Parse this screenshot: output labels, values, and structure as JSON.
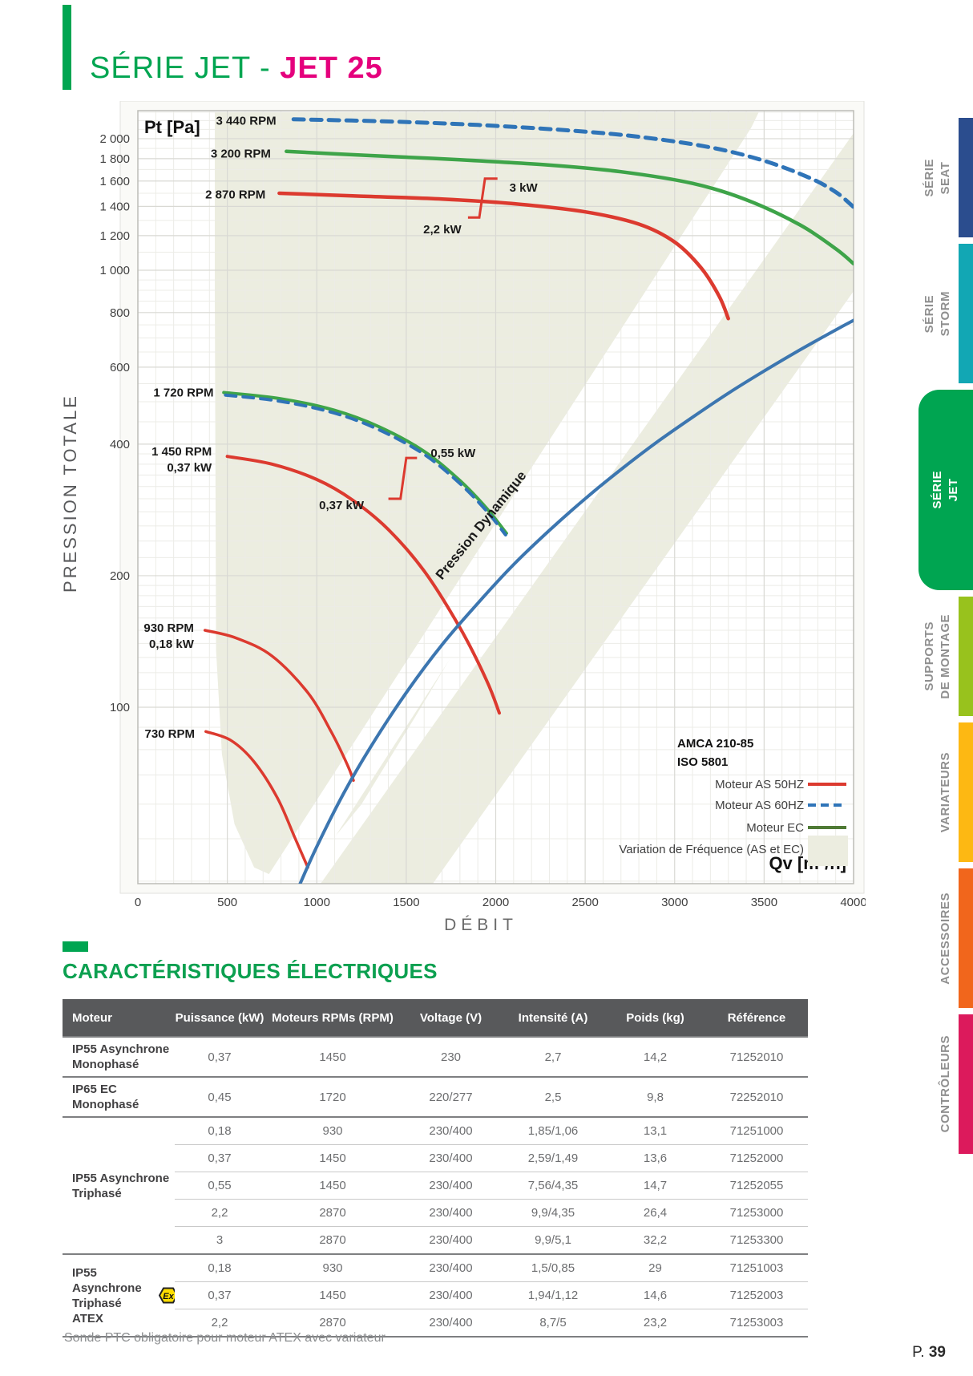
{
  "page": {
    "title_prefix": "SÉRIE JET - ",
    "title_model": "JET 25",
    "footnote": "Sonde PTC obligatoire pour moteur ATEX avec variateur",
    "page_label": "P. ",
    "page_number": "39",
    "accent_green": "#00A551",
    "accent_magenta": "#E5007D"
  },
  "sidebar": {
    "tabs": [
      {
        "id": "serie-seat",
        "label": "SÉRIE\nSEAT",
        "color": "#2B4D8E",
        "active": false
      },
      {
        "id": "serie-storm",
        "label": "SÉRIE\nSTORM",
        "color": "#12A7B4",
        "active": false
      },
      {
        "id": "serie-jet",
        "label": "SÉRIE\nJET",
        "color": "#00A551",
        "active": true
      },
      {
        "id": "supports",
        "label": "SUPPORTS\nDE MONTAGE",
        "color": "#98C21D",
        "active": false
      },
      {
        "id": "variateurs",
        "label": "VARIATEURS",
        "color": "#FDB813",
        "active": false
      },
      {
        "id": "accessoires",
        "label": "ACCESSOIRES",
        "color": "#F1661C",
        "active": false
      },
      {
        "id": "controleurs",
        "label": "CONTRÔLEURS",
        "color": "#DC1A5C",
        "active": false
      }
    ]
  },
  "section": {
    "title": "CARACTÉRISTIQUES ÉLECTRIQUES"
  },
  "table": {
    "columns": [
      "Moteur",
      "Puissance (kW)",
      "Moteurs RPMs (RPM)",
      "Voltage (V)",
      "Intensité (A)",
      "Poids (kg)",
      "Référence"
    ],
    "atex_icon_text": "Ex",
    "groups": [
      {
        "label": "IP55 Asynchrone\nMonophasé",
        "atex": false,
        "rows": [
          [
            "0,37",
            "1450",
            "230",
            "2,7",
            "14,2",
            "71252010"
          ]
        ]
      },
      {
        "label": "IP65 EC\nMonophasé",
        "atex": false,
        "rows": [
          [
            "0,45",
            "1720",
            "220/277",
            "2,5",
            "9,8",
            "72252010"
          ]
        ]
      },
      {
        "label": "IP55 Asynchrone\nTriphasé",
        "atex": false,
        "rows": [
          [
            "0,18",
            "930",
            "230/400",
            "1,85/1,06",
            "13,1",
            "71251000"
          ],
          [
            "0,37",
            "1450",
            "230/400",
            "2,59/1,49",
            "13,6",
            "71252000"
          ],
          [
            "0,55",
            "1450",
            "230/400",
            "7,56/4,35",
            "14,7",
            "71252055"
          ],
          [
            "2,2",
            "2870",
            "230/400",
            "9,9/4,35",
            "26,4",
            "71253000"
          ],
          [
            "3",
            "2870",
            "230/400",
            "9,9/5,1",
            "32,2",
            "71253300"
          ]
        ]
      },
      {
        "label": "IP55 Asynchrone\nTriphasé ATEX",
        "atex": true,
        "rows": [
          [
            "0,18",
            "930",
            "230/400",
            "1,5/0,85",
            "29",
            "71251003"
          ],
          [
            "0,37",
            "1450",
            "230/400",
            "1,94/1,12",
            "14,6",
            "71252003"
          ],
          [
            "2,2",
            "2870",
            "230/400",
            "8,7/5",
            "23,2",
            "71253003"
          ]
        ]
      }
    ]
  },
  "chart_data": {
    "type": "line",
    "x_axis": {
      "label": "DÉBIT",
      "unit": "Qv [m³/h]",
      "min": 0,
      "max": 4000,
      "ticks": [
        0,
        500,
        1000,
        1500,
        2000,
        2500,
        3000,
        3500,
        4000
      ]
    },
    "y_axis": {
      "label": "PRESSION TOTALE",
      "unit": "Pt [Pa]",
      "scale": "log",
      "min": 40,
      "max": 2300,
      "ticks": [
        {
          "v": 2000,
          "t": "2 000"
        },
        {
          "v": 1800,
          "t": "1 800"
        },
        {
          "v": 1600,
          "t": "1 600"
        },
        {
          "v": 1400,
          "t": "1 400"
        },
        {
          "v": 1200,
          "t": "1 200"
        },
        {
          "v": 1000,
          "t": "1 000"
        },
        {
          "v": 800,
          "t": "800"
        },
        {
          "v": 600,
          "t": "600"
        },
        {
          "v": 400,
          "t": "400"
        },
        {
          "v": 200,
          "t": "200"
        },
        {
          "v": 100,
          "t": "100"
        }
      ]
    },
    "colors": {
      "red": "#DC3A2F",
      "green": "#3EA449",
      "blue": "#2F74B8",
      "sysblue": "#3C76B0",
      "beige": "#ECEDE0",
      "legend_ec": "#4F7A35",
      "grid_minor": "#ECECE7",
      "grid_major": "#D9D9D4"
    },
    "series": [
      {
        "name": "3 440 RPM",
        "motor": "AS 60HZ",
        "color": "blue",
        "style": "dashed",
        "width": 5,
        "points": [
          [
            870,
            2215
          ],
          [
            1400,
            2190
          ],
          [
            1900,
            2150
          ],
          [
            2400,
            2090
          ],
          [
            2800,
            2020
          ],
          [
            3200,
            1910
          ],
          [
            3500,
            1780
          ],
          [
            3750,
            1630
          ],
          [
            3900,
            1510
          ],
          [
            4000,
            1395
          ]
        ]
      },
      {
        "name": "3 200 RPM",
        "motor": "EC",
        "color": "green",
        "style": "solid",
        "width": 4.5,
        "points": [
          [
            830,
            1870
          ],
          [
            1300,
            1830
          ],
          [
            1800,
            1790
          ],
          [
            2300,
            1740
          ],
          [
            2700,
            1680
          ],
          [
            3100,
            1580
          ],
          [
            3400,
            1450
          ],
          [
            3700,
            1270
          ],
          [
            3900,
            1120
          ],
          [
            4000,
            1035
          ]
        ]
      },
      {
        "name": "2 870 RPM",
        "motor": "AS 50HZ",
        "color": "red",
        "style": "solid",
        "width": 4.5,
        "points": [
          [
            790,
            1500
          ],
          [
            1200,
            1480
          ],
          [
            1700,
            1455
          ],
          [
            2100,
            1420
          ],
          [
            2500,
            1360
          ],
          [
            2800,
            1275
          ],
          [
            3000,
            1160
          ],
          [
            3150,
            1010
          ],
          [
            3250,
            870
          ],
          [
            3300,
            775
          ]
        ]
      },
      {
        "name": "1 720 RPM",
        "motor": "EC",
        "color": "green",
        "style": "solid",
        "width": 4,
        "points": [
          [
            480,
            525
          ],
          [
            800,
            508
          ],
          [
            1100,
            478
          ],
          [
            1350,
            438
          ],
          [
            1600,
            385
          ],
          [
            1800,
            330
          ],
          [
            1950,
            285
          ],
          [
            2060,
            250
          ]
        ]
      },
      {
        "name": "1 720 RPM",
        "motor": "AS 60HZ",
        "color": "blue",
        "style": "dashed",
        "width": 4,
        "points": [
          [
            490,
            518
          ],
          [
            800,
            501
          ],
          [
            1100,
            471
          ],
          [
            1350,
            431
          ],
          [
            1600,
            379
          ],
          [
            1800,
            325
          ],
          [
            1950,
            281
          ],
          [
            2055,
            248
          ]
        ]
      },
      {
        "name": "1 450 RPM",
        "motor": "AS 50HZ",
        "color": "red",
        "style": "solid",
        "width": 4,
        "points": [
          [
            500,
            375
          ],
          [
            750,
            360
          ],
          [
            1000,
            332
          ],
          [
            1200,
            298
          ],
          [
            1400,
            255
          ],
          [
            1600,
            205
          ],
          [
            1800,
            152
          ],
          [
            1950,
            115
          ],
          [
            2020,
            97
          ]
        ]
      },
      {
        "name": "930 RPM",
        "motor": "AS 50HZ",
        "color": "red",
        "style": "solid",
        "width": 3.5,
        "points": [
          [
            375,
            150
          ],
          [
            550,
            144
          ],
          [
            750,
            131
          ],
          [
            950,
            108
          ],
          [
            1080,
            88
          ],
          [
            1170,
            74
          ],
          [
            1205,
            68
          ]
        ]
      },
      {
        "name": "730 RPM",
        "motor": "AS 50HZ",
        "color": "red",
        "style": "solid",
        "width": 3.5,
        "points": [
          [
            380,
            88
          ],
          [
            520,
            84
          ],
          [
            650,
            75
          ],
          [
            780,
            62
          ],
          [
            880,
            50
          ],
          [
            950,
            43
          ]
        ]
      },
      {
        "name": "Pression Dynamique",
        "motor": "système",
        "color": "sysblue",
        "style": "solid",
        "width": 4,
        "points": [
          [
            905,
            39.3
          ],
          [
            1000,
            48
          ],
          [
            1150,
            63.5
          ],
          [
            1300,
            81
          ],
          [
            1500,
            108
          ],
          [
            1700,
            139
          ],
          [
            1900,
            173
          ],
          [
            2100,
            212
          ],
          [
            2300,
            254
          ],
          [
            2500,
            300
          ],
          [
            2700,
            350
          ],
          [
            2900,
            404
          ],
          [
            3100,
            461
          ],
          [
            3300,
            523
          ],
          [
            3500,
            588
          ],
          [
            3700,
            657
          ],
          [
            3900,
            730
          ],
          [
            4000,
            768
          ]
        ]
      }
    ],
    "curve_labels": [
      {
        "lines": [
          "3 440 RPM"
        ],
        "qv": 800,
        "pa": 2200
      },
      {
        "lines": [
          "3 200 RPM"
        ],
        "qv": 770,
        "pa": 1850
      },
      {
        "lines": [
          "2 870 RPM"
        ],
        "qv": 740,
        "pa": 1490
      },
      {
        "lines": [
          "1 720 RPM"
        ],
        "qv": 450,
        "pa": 525
      },
      {
        "lines": [
          "1 450 RPM",
          "0,37 kW"
        ],
        "qv": 440,
        "pa": 385
      },
      {
        "lines": [
          "930 RPM",
          "0,18 kW"
        ],
        "qv": 340,
        "pa": 152
      },
      {
        "lines": [
          "730 RPM"
        ],
        "qv": 345,
        "pa": 87
      }
    ],
    "power_labels": [
      {
        "text": "3 kW",
        "qv": 2050,
        "pa": 1545,
        "anchor": "start"
      },
      {
        "text": "2,2 kW",
        "qv": 1835,
        "pa": 1240,
        "anchor": "end"
      },
      {
        "text": "0,55 kW",
        "qv": 1610,
        "pa": 382,
        "anchor": "start"
      },
      {
        "text": "0,37 kW",
        "qv": 1290,
        "pa": 290,
        "anchor": "end"
      }
    ],
    "power_connectors": [
      [
        [
          2010,
          1620
        ],
        [
          1940,
          1620
        ],
        [
          1908,
          1320
        ],
        [
          1845,
          1320
        ]
      ],
      [
        [
          1560,
          372
        ],
        [
          1500,
          372
        ],
        [
          1468,
          300
        ],
        [
          1400,
          300
        ]
      ]
    ],
    "diagonal_label": {
      "text": "Pression Dynamique",
      "qv": 1700,
      "pa": 195,
      "angle": -51
    },
    "legend": {
      "standards": [
        "AMCA 210-85",
        "ISO 5801"
      ],
      "items": [
        {
          "label": "Moteur  AS 50HZ",
          "swatch": "line-red"
        },
        {
          "label": "Moteur  AS 60HZ",
          "swatch": "dash-blue"
        },
        {
          "label": "Moteur  EC",
          "swatch": "line-green"
        },
        {
          "label": "Variation de Fréquence (AS et EC)",
          "swatch": "zone-beige"
        }
      ]
    },
    "frequency_zone": {
      "polygon": [
        [
          430,
          2300
        ],
        [
          3470,
          2300
        ],
        [
          3250,
          1500
        ],
        [
          2950,
          850
        ],
        [
          2600,
          480
        ],
        [
          2250,
          280
        ],
        [
          1900,
          165
        ],
        [
          1550,
          95
        ],
        [
          1250,
          60
        ],
        [
          1000,
          45
        ],
        [
          820,
          40
        ],
        [
          650,
          43
        ],
        [
          540,
          54
        ],
        [
          470,
          78
        ],
        [
          437,
          135
        ],
        [
          430,
          900
        ]
      ]
    }
  }
}
